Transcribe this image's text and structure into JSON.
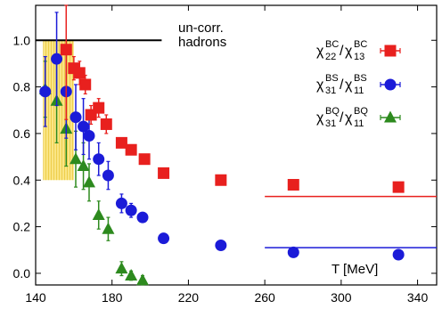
{
  "chart_data": {
    "type": "scatter",
    "xlim": [
      140,
      350
    ],
    "ylim": [
      -0.05,
      1.15
    ],
    "xticks": [
      140,
      180,
      220,
      260,
      300,
      340
    ],
    "yticks": [
      0.0,
      0.2,
      0.4,
      0.6,
      0.8,
      1.0
    ],
    "xlabel": "T [MeV]",
    "grid": false,
    "legend_position": "top-right",
    "annotation": {
      "line1": "un-corr.",
      "line2": "hadrons",
      "y": 1.0,
      "x_range": [
        140,
        206
      ]
    },
    "band": {
      "x_range": [
        144,
        160
      ],
      "y_range": [
        0.4,
        1.0
      ],
      "color": "#f5d020"
    },
    "series": [
      {
        "name_base": "χ",
        "name_sub1": "22",
        "name_sup1": "BC",
        "name_sub2": "13",
        "name_sup2": "BC",
        "color": "#e8201e",
        "marker": "square",
        "x": [
          156,
          160,
          163,
          166,
          169,
          173,
          177,
          185,
          190,
          197,
          207,
          237,
          275,
          330
        ],
        "y": [
          0.96,
          0.88,
          0.86,
          0.81,
          0.68,
          0.71,
          0.64,
          0.56,
          0.53,
          0.49,
          0.43,
          0.4,
          0.38,
          0.37
        ],
        "err": [
          0.3,
          0.05,
          0.05,
          0.04,
          0.04,
          0.04,
          0.04,
          0.02,
          0.02,
          0.02,
          0.02,
          0.02,
          0.02,
          0.02
        ],
        "hline": {
          "y": 0.33,
          "x_range": [
            260,
            350
          ]
        }
      },
      {
        "name_base": "χ",
        "name_sub1": "31",
        "name_sup1": "BS",
        "name_sub2": "11",
        "name_sup2": "BS",
        "color": "#1b1bd8",
        "marker": "circle",
        "x": [
          145,
          151,
          156,
          161,
          165,
          168,
          173,
          178,
          185,
          190,
          196,
          207,
          237,
          275,
          330
        ],
        "y": [
          0.78,
          0.92,
          0.78,
          0.67,
          0.63,
          0.59,
          0.49,
          0.42,
          0.3,
          0.27,
          0.24,
          0.15,
          0.12,
          0.09,
          0.08
        ],
        "err": [
          0.15,
          0.2,
          0.2,
          0.14,
          0.12,
          0.1,
          0.07,
          0.06,
          0.04,
          0.03,
          0.02,
          0.02,
          0.02,
          0.02,
          0.02
        ],
        "hline": {
          "y": 0.11,
          "x_range": [
            260,
            350
          ]
        }
      },
      {
        "name_base": "χ",
        "name_sub1": "31",
        "name_sup1": "BQ",
        "name_sub2": "11",
        "name_sup2": "BQ",
        "color": "#2d8a1e",
        "marker": "triangle",
        "x": [
          145,
          151,
          156,
          161,
          165,
          168,
          173,
          178,
          185,
          190,
          196
        ],
        "y": [
          0.79,
          0.74,
          0.62,
          0.49,
          0.46,
          0.39,
          0.25,
          0.19,
          0.02,
          -0.01,
          -0.03
        ],
        "err": [
          0.12,
          0.18,
          0.16,
          0.12,
          0.1,
          0.08,
          0.06,
          0.05,
          0.03,
          0.02,
          0.02
        ]
      }
    ]
  }
}
